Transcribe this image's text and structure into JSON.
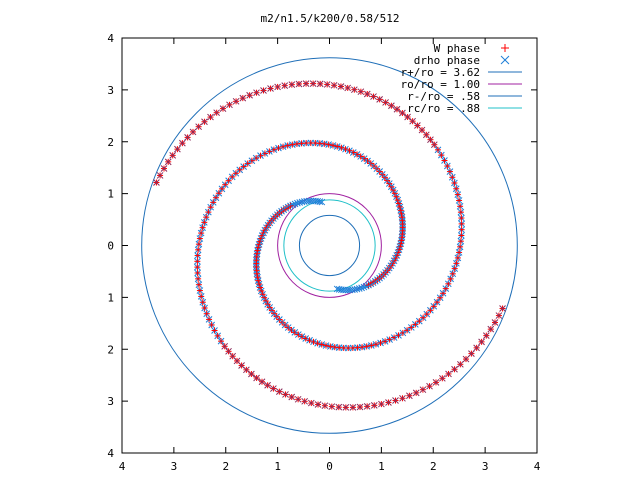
{
  "chart_data": {
    "type": "scatter",
    "title": "m2/n1.5/k200/0.58/512",
    "xlabel": "",
    "ylabel": "",
    "xlim": [
      -4,
      4
    ],
    "ylim": [
      -4,
      4
    ],
    "x_tick_labels": [
      "4",
      "3",
      "2",
      "1",
      "0",
      "1",
      "2",
      "3",
      "4"
    ],
    "y_tick_labels": [
      "4",
      "3",
      "2",
      "1",
      "0",
      "1",
      "2",
      "3",
      "4"
    ],
    "grid": false,
    "legend_position": "top-right",
    "point_series": [
      {
        "name": "W phase",
        "marker": "plus",
        "color": "#ff0000"
      },
      {
        "name": "drho phase",
        "marker": "cross",
        "color": "#1e7fd8"
      }
    ],
    "circles": [
      {
        "name": "r+/ro = 3.62",
        "radius": 3.62,
        "color": "#1f6fb8"
      },
      {
        "name": "ro/ro = 1.00",
        "radius": 1.0,
        "color": "#a020a0"
      },
      {
        "name": "r-/ro = .58",
        "radius": 0.58,
        "color": "#1f6fb8"
      },
      {
        "name": "rc/ro = .88",
        "radius": 0.88,
        "color": "#20c0c8"
      }
    ],
    "spiral_arms": [
      {
        "arm": 1,
        "theta_start_deg": 100,
        "theta_end_deg": 520,
        "r_start": 0.85,
        "r_end": 3.55
      },
      {
        "arm": 2,
        "theta_start_deg": 280,
        "theta_end_deg": 700,
        "r_start": 0.85,
        "r_end": 3.55
      }
    ]
  }
}
